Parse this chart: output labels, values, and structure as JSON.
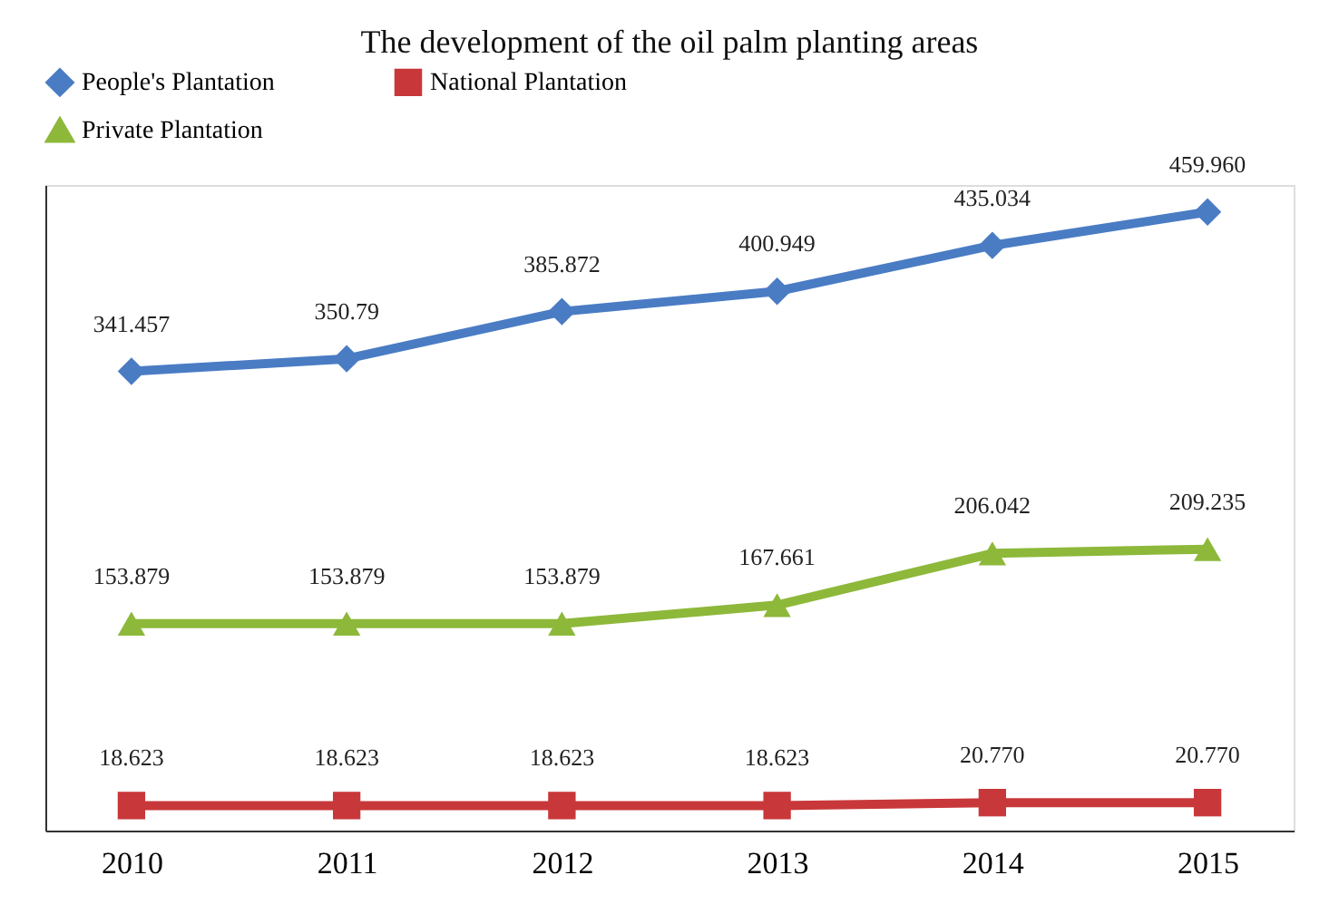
{
  "chart_data": {
    "type": "line",
    "title": "The development of the oil palm planting areas",
    "categories": [
      "2010",
      "2011",
      "2012",
      "2013",
      "2014",
      "2015"
    ],
    "series": [
      {
        "name": "People's Plantation",
        "color": "#4a7cc4",
        "marker": "diamond",
        "values": [
          341.457,
          350.79,
          385.872,
          400.949,
          435.034,
          459.96
        ],
        "value_labels": [
          "341.457",
          "350.79",
          "385.872",
          "400.949",
          "435.034",
          "459.960"
        ]
      },
      {
        "name": "National Plantation",
        "color": "#c8383a",
        "marker": "square",
        "values": [
          18.623,
          18.623,
          18.623,
          18.623,
          20.77,
          20.77
        ],
        "value_labels": [
          "18.623",
          "18.623",
          "18.623",
          "18.623",
          "20.770",
          "20.770"
        ]
      },
      {
        "name": "Private Plantation",
        "color": "#8db83a",
        "marker": "triangle",
        "values": [
          153.879,
          153.879,
          153.879,
          167.661,
          206.042,
          209.235
        ],
        "value_labels": [
          "153.879",
          "153.879",
          "153.879",
          "167.661",
          "206.042",
          "209.235"
        ]
      }
    ],
    "ylim": [
      0,
      480
    ],
    "tick_labels": "x",
    "grid": false,
    "legend": "top"
  }
}
